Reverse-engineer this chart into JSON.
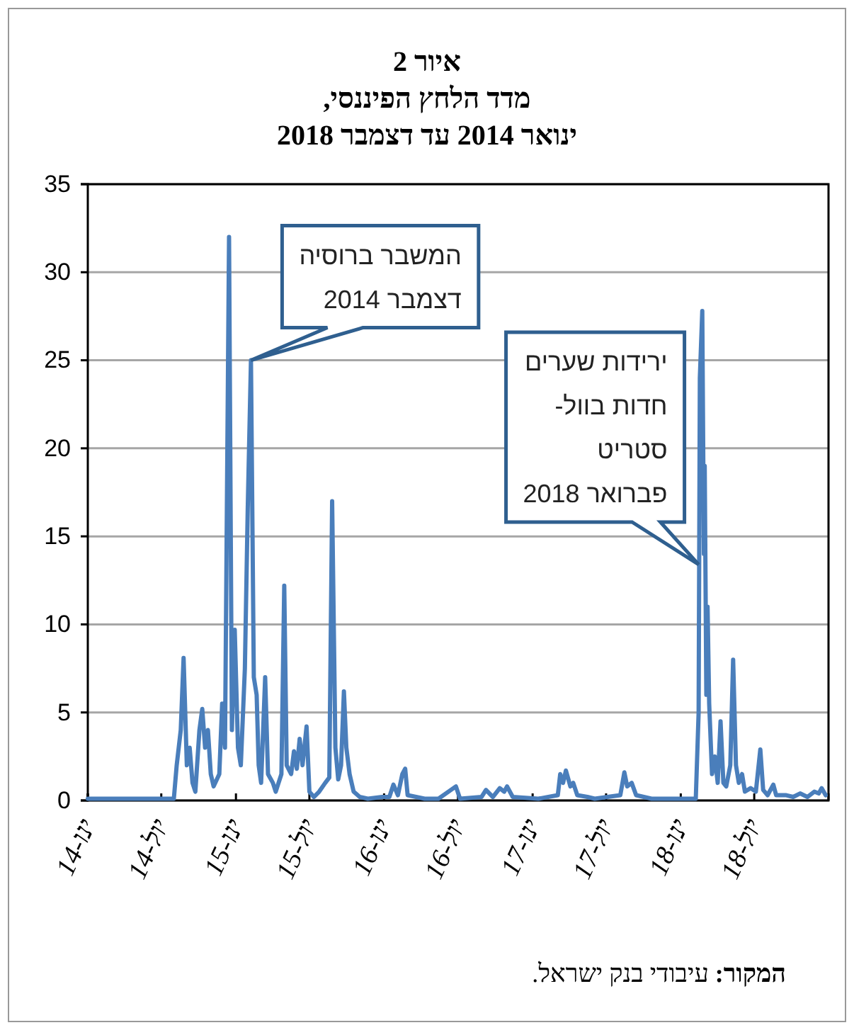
{
  "chart_data": {
    "type": "line",
    "title": "איור 2",
    "subtitle": "מדד הלחץ הפיננסי,\nינואר 2014 עד דצמבר 2018",
    "xlim": [
      "2014-01-01",
      "2018-12-31"
    ],
    "xticks": [
      {
        "value": "2014-01-01",
        "label": "ינו-14"
      },
      {
        "value": "2014-07-01",
        "label": "יול-14"
      },
      {
        "value": "2015-01-01",
        "label": "ינו-15"
      },
      {
        "value": "2015-07-01",
        "label": "יול-15"
      },
      {
        "value": "2016-01-01",
        "label": "ינו-16"
      },
      {
        "value": "2016-07-01",
        "label": "יול-16"
      },
      {
        "value": "2017-01-01",
        "label": "ינו-17"
      },
      {
        "value": "2017-07-01",
        "label": "יול-17"
      },
      {
        "value": "2018-01-01",
        "label": "ינו-18"
      },
      {
        "value": "2018-07-01",
        "label": "יול-18"
      }
    ],
    "ylim": [
      0,
      35
    ],
    "yticks": [
      0,
      5,
      10,
      15,
      20,
      25,
      30,
      35
    ],
    "grid": "y",
    "marker": "none",
    "line_style": "solid",
    "x": [
      "2014-01-01",
      "2014-04-07",
      "2014-08-01",
      "2014-08-08",
      "2014-08-18",
      "2014-08-25",
      "2014-09-02",
      "2014-09-09",
      "2014-09-16",
      "2014-09-23",
      "2014-10-03",
      "2014-10-10",
      "2014-10-17",
      "2014-10-24",
      "2014-10-31",
      "2014-11-07",
      "2014-11-21",
      "2014-11-28",
      "2014-12-05",
      "2014-12-15",
      "2014-12-22",
      "2014-12-29",
      "2015-01-06",
      "2015-01-13",
      "2015-01-23",
      "2015-01-30",
      "2015-02-07",
      "2015-02-14",
      "2015-02-21",
      "2015-02-26",
      "2015-03-04",
      "2015-03-14",
      "2015-03-21",
      "2015-04-02",
      "2015-04-09",
      "2015-04-23",
      "2015-04-30",
      "2015-05-06",
      "2015-05-17",
      "2015-05-24",
      "2015-05-31",
      "2015-06-07",
      "2015-06-14",
      "2015-06-24",
      "2015-07-01",
      "2015-07-12",
      "2015-07-25",
      "2015-08-09",
      "2015-08-19",
      "2015-08-26",
      "2015-09-03",
      "2015-09-10",
      "2015-09-17",
      "2015-09-24",
      "2015-09-30",
      "2015-10-08",
      "2015-10-18",
      "2015-11-02",
      "2015-11-22",
      "2015-12-27",
      "2016-01-14",
      "2016-01-24",
      "2016-02-04",
      "2016-02-15",
      "2016-02-22",
      "2016-02-28",
      "2016-04-10",
      "2016-05-14",
      "2016-06-26",
      "2016-07-06",
      "2016-08-28",
      "2016-09-08",
      "2016-09-25",
      "2016-10-12",
      "2016-10-23",
      "2016-10-30",
      "2016-11-13",
      "2017-01-15",
      "2017-03-04",
      "2017-03-10",
      "2017-03-17",
      "2017-03-24",
      "2017-04-04",
      "2017-04-11",
      "2017-04-21",
      "2017-05-16",
      "2017-06-03",
      "2017-08-05",
      "2017-08-15",
      "2017-08-22",
      "2017-09-02",
      "2017-09-13",
      "2017-10-21",
      "2017-12-30",
      "2018-01-27",
      "2018-02-07",
      "2018-02-14",
      "2018-02-17",
      "2018-02-23",
      "2018-02-27",
      "2018-03-01",
      "2018-03-05",
      "2018-03-08",
      "2018-03-12",
      "2018-03-19",
      "2018-03-26",
      "2018-04-02",
      "2018-04-09",
      "2018-04-16",
      "2018-04-23",
      "2018-05-03",
      "2018-05-10",
      "2018-05-17",
      "2018-05-24",
      "2018-06-01",
      "2018-06-08",
      "2018-06-22",
      "2018-07-05",
      "2018-07-16",
      "2018-07-23",
      "2018-08-03",
      "2018-08-17",
      "2018-08-24",
      "2018-09-18",
      "2018-10-05",
      "2018-10-22",
      "2018-11-09",
      "2018-11-26",
      "2018-12-07",
      "2018-12-14",
      "2018-12-24"
    ],
    "series": [
      {
        "color": "#4a7ebb",
        "values": [
          0.1,
          0.1,
          0.1,
          2,
          4,
          8.1,
          2,
          3,
          1,
          0.5,
          4,
          5.2,
          3,
          4,
          1.5,
          0.8,
          1.5,
          5.5,
          3,
          32,
          4,
          9.7,
          3,
          2,
          7.5,
          16.5,
          25,
          7,
          6,
          2,
          1,
          7,
          1.5,
          1,
          0.5,
          1.5,
          12.2,
          2,
          1.5,
          2.8,
          1.8,
          3.5,
          2,
          4.2,
          0.5,
          0.2,
          0.5,
          1,
          1.3,
          17,
          3,
          1.2,
          2,
          6.2,
          3,
          1.5,
          0.5,
          0.2,
          0.1,
          0.2,
          0.2,
          0.9,
          0.3,
          1.5,
          1.8,
          0.3,
          0.1,
          0.1,
          0.8,
          0.1,
          0.2,
          0.6,
          0.2,
          0.7,
          0.5,
          0.8,
          0.2,
          0.1,
          0.3,
          1.5,
          1,
          1.7,
          0.8,
          1,
          0.3,
          0.2,
          0.1,
          0.3,
          1.6,
          0.8,
          1,
          0.3,
          0.1,
          0.1,
          0.1,
          0.1,
          5,
          24,
          27.8,
          14,
          19,
          6,
          11,
          5.5,
          1.5,
          2.5,
          1,
          4.5,
          1,
          0.8,
          2,
          8,
          2,
          1,
          1.5,
          0.5,
          0.7,
          0.5,
          2.9,
          0.6,
          0.3,
          0.9,
          0.3,
          0.3,
          0.2,
          0.4,
          0.2,
          0.5,
          0.4,
          0.7,
          0.3
        ]
      }
    ],
    "annotations": [
      {
        "text": "המשבר ברוסיה\nדצמבר 2014",
        "x": "2015-02-07",
        "y": 25
      },
      {
        "text": "ירידות שערים\nחדות בוול-\nסטריט\nפברואר 2018",
        "x": "2018-02-14",
        "y": 13.4
      },
      "המקור: עיבודי בנק ישראל."
    ]
  }
}
